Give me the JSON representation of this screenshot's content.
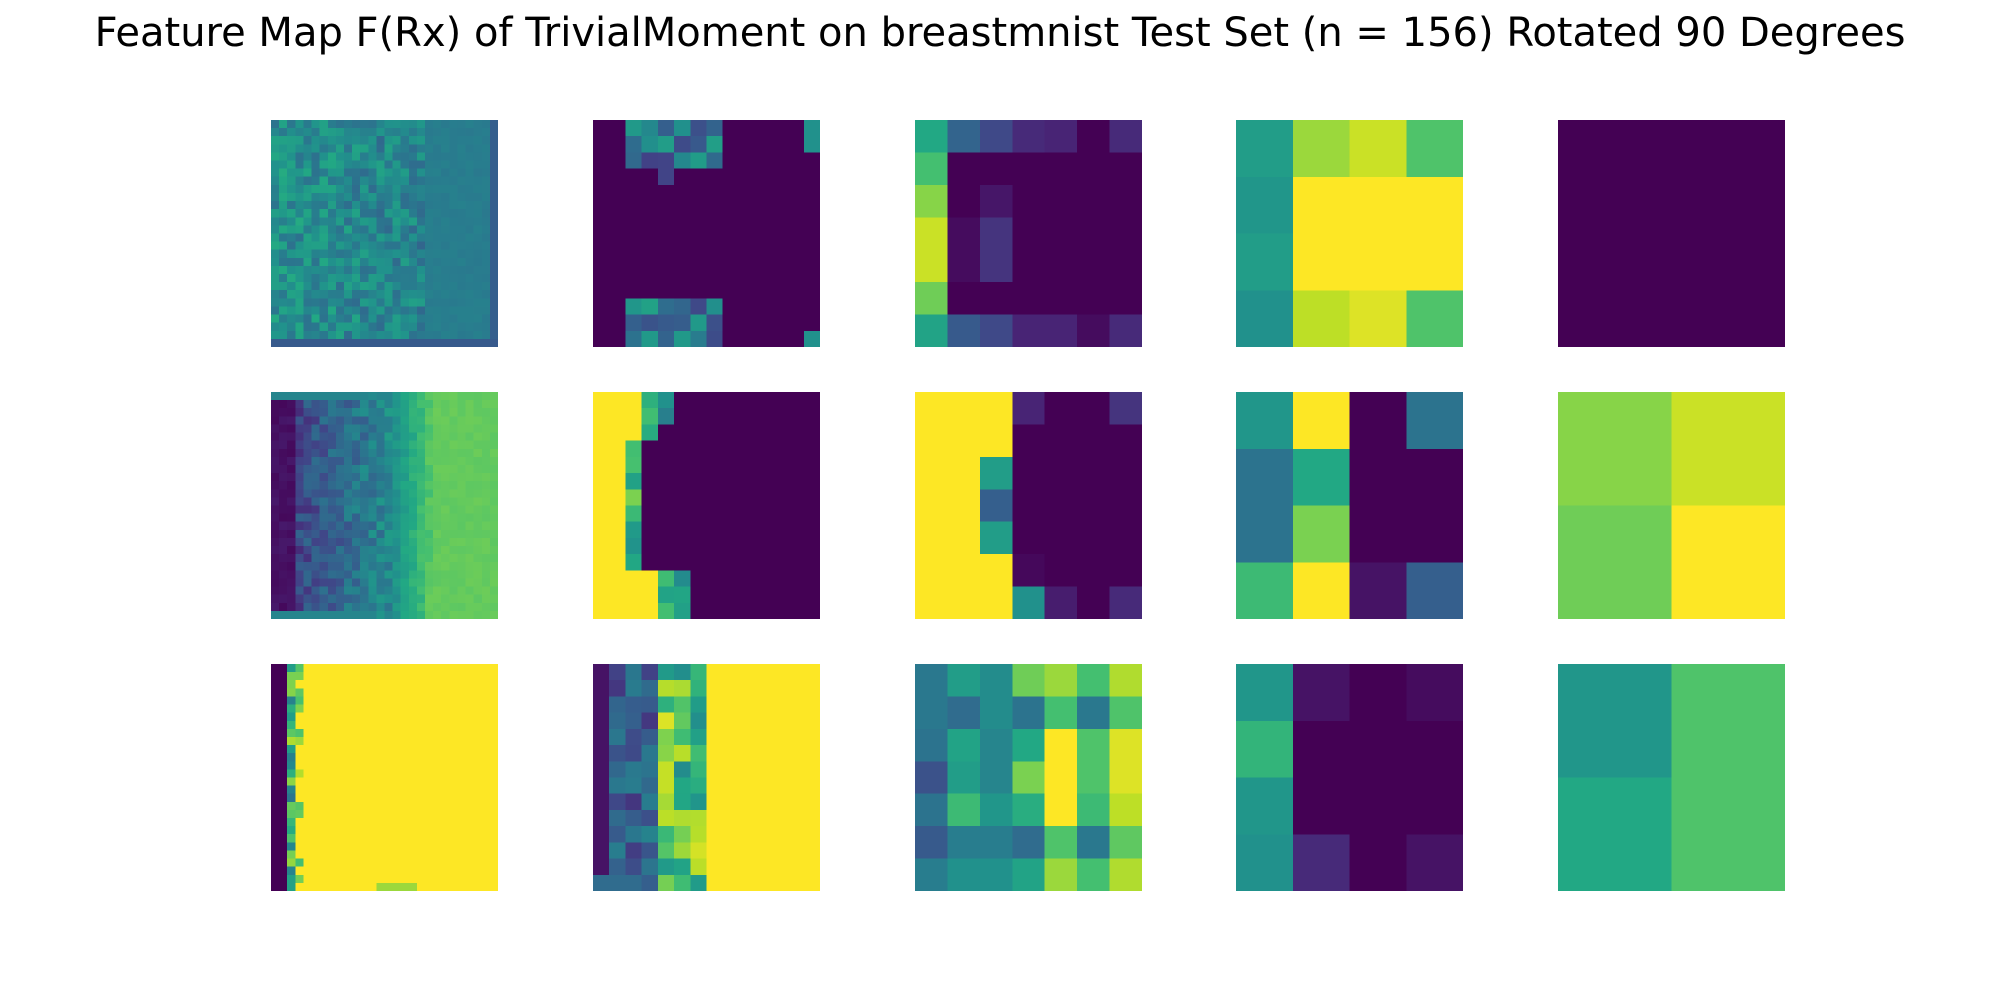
{
  "chart_data": {
    "type": "heatmap",
    "title": "Feature Map F(Rx) of TrivialMoment on breastmnist Test Set (n = 156) Rotated 90 Degrees",
    "colormap": "viridis",
    "value_range": [
      0,
      1
    ],
    "rows": 3,
    "cols": 5,
    "panels": [
      {
        "size": 28,
        "pattern": "mottled",
        "params": {
          "base": 0.5,
          "amp": 0.12,
          "rightBlock": 0.42,
          "rightStart": 0.7
        }
      },
      {
        "size": 14,
        "pattern": "dark_with_edges",
        "params": {
          "base": 0.0
        }
      },
      {
        "size": 7,
        "pattern": "grid",
        "grid": [
          [
            0.6,
            0.32,
            0.22,
            0.12,
            0.1,
            0.0,
            0.12
          ],
          [
            0.7,
            0.0,
            0.0,
            0.0,
            0.0,
            0.0,
            0.0
          ],
          [
            0.82,
            0.0,
            0.06,
            0.0,
            0.0,
            0.0,
            0.0
          ],
          [
            0.92,
            0.03,
            0.15,
            0.0,
            0.0,
            0.0,
            0.0
          ],
          [
            0.92,
            0.03,
            0.15,
            0.0,
            0.0,
            0.0,
            0.0
          ],
          [
            0.78,
            0.0,
            0.0,
            0.0,
            0.0,
            0.0,
            0.0
          ],
          [
            0.58,
            0.28,
            0.22,
            0.1,
            0.1,
            0.03,
            0.12
          ]
        ]
      },
      {
        "size": 4,
        "pattern": "grid",
        "grid": [
          [
            0.55,
            0.85,
            0.92,
            0.72
          ],
          [
            0.52,
            1.0,
            1.0,
            1.0
          ],
          [
            0.55,
            1.0,
            1.0,
            1.0
          ],
          [
            0.5,
            0.9,
            0.95,
            0.72
          ]
        ]
      },
      {
        "size": 2,
        "pattern": "grid",
        "grid": [
          [
            0,
            0
          ],
          [
            0,
            0
          ]
        ]
      },
      {
        "size": 28,
        "pattern": "gradient_lr",
        "params": {
          "left": 0.0,
          "mid": 0.45,
          "right": 0.78
        }
      },
      {
        "size": 14,
        "pattern": "yellow_left",
        "params": {}
      },
      {
        "size": 7,
        "pattern": "grid",
        "grid": [
          [
            1.0,
            1.0,
            1.0,
            0.1,
            0.0,
            0.0,
            0.15
          ],
          [
            1.0,
            1.0,
            1.0,
            0.0,
            0.0,
            0.0,
            0.0
          ],
          [
            1.0,
            1.0,
            0.55,
            0.0,
            0.0,
            0.0,
            0.0
          ],
          [
            1.0,
            1.0,
            0.3,
            0.0,
            0.0,
            0.0,
            0.0
          ],
          [
            1.0,
            1.0,
            0.55,
            0.0,
            0.0,
            0.0,
            0.0
          ],
          [
            1.0,
            1.0,
            1.0,
            0.02,
            0.0,
            0.0,
            0.0
          ],
          [
            1.0,
            1.0,
            1.0,
            0.5,
            0.08,
            0.0,
            0.12
          ]
        ]
      },
      {
        "size": 4,
        "pattern": "grid",
        "grid": [
          [
            0.52,
            1.0,
            0.0,
            0.38
          ],
          [
            0.38,
            0.6,
            0.0,
            0.0
          ],
          [
            0.38,
            0.8,
            0.0,
            0.0
          ],
          [
            0.68,
            1.0,
            0.05,
            0.3
          ]
        ]
      },
      {
        "size": 2,
        "pattern": "grid",
        "grid": [
          [
            0.82,
            0.92
          ],
          [
            0.78,
            1.0
          ]
        ]
      },
      {
        "size": 28,
        "pattern": "yellow_right",
        "params": {}
      },
      {
        "size": 14,
        "pattern": "mixed_right_yellow",
        "params": {}
      },
      {
        "size": 7,
        "pattern": "grid",
        "grid": [
          [
            0.4,
            0.55,
            0.48,
            0.78,
            0.85,
            0.7,
            0.88
          ],
          [
            0.4,
            0.35,
            0.48,
            0.38,
            0.7,
            0.4,
            0.72
          ],
          [
            0.38,
            0.58,
            0.45,
            0.6,
            1.0,
            0.72,
            0.95
          ],
          [
            0.25,
            0.55,
            0.45,
            0.8,
            1.0,
            0.72,
            0.95
          ],
          [
            0.38,
            0.68,
            0.52,
            0.62,
            1.0,
            0.68,
            0.9
          ],
          [
            0.28,
            0.42,
            0.42,
            0.35,
            0.72,
            0.4,
            0.75
          ],
          [
            0.42,
            0.5,
            0.5,
            0.58,
            0.85,
            0.7,
            0.88
          ]
        ]
      },
      {
        "size": 4,
        "pattern": "grid",
        "grid": [
          [
            0.52,
            0.05,
            0.0,
            0.03
          ],
          [
            0.65,
            0.0,
            0.0,
            0.0
          ],
          [
            0.52,
            0.0,
            0.0,
            0.0
          ],
          [
            0.5,
            0.12,
            0.0,
            0.05
          ]
        ]
      },
      {
        "size": 2,
        "pattern": "grid",
        "grid": [
          [
            0.52,
            0.72
          ],
          [
            0.6,
            0.72
          ]
        ]
      }
    ]
  }
}
